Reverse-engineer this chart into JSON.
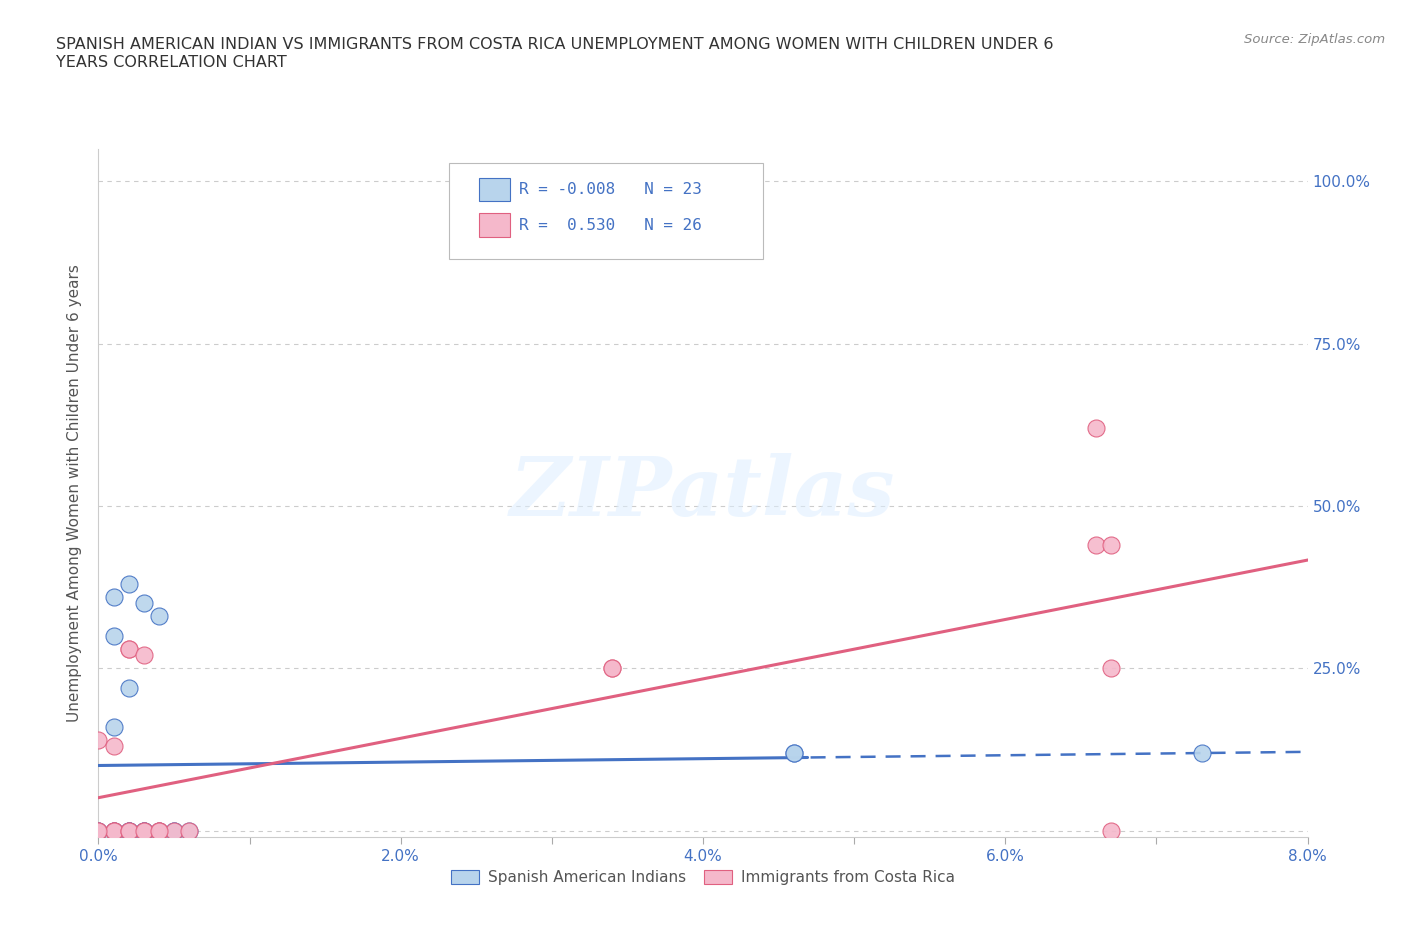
{
  "title": "SPANISH AMERICAN INDIAN VS IMMIGRANTS FROM COSTA RICA UNEMPLOYMENT AMONG WOMEN WITH CHILDREN UNDER 6\nYEARS CORRELATION CHART",
  "source": "Source: ZipAtlas.com",
  "ylabel": "Unemployment Among Women with Children Under 6 years",
  "xlim": [
    0.0,
    0.08
  ],
  "ylim": [
    -0.01,
    1.05
  ],
  "xticks": [
    0.0,
    0.01,
    0.02,
    0.03,
    0.04,
    0.05,
    0.06,
    0.07,
    0.08
  ],
  "xticklabels": [
    "0.0%",
    "",
    "2.0%",
    "",
    "4.0%",
    "",
    "6.0%",
    "",
    "8.0%"
  ],
  "yticks": [
    0.0,
    0.25,
    0.5,
    0.75,
    1.0
  ],
  "yticklabels": [
    "",
    "25.0%",
    "50.0%",
    "75.0%",
    "100.0%"
  ],
  "watermark_text": "ZIPatlas",
  "blue_R": "-0.008",
  "blue_N": "23",
  "pink_R": "0.530",
  "pink_N": "26",
  "blue_fill": "#b8d4ec",
  "blue_edge": "#4472c4",
  "pink_fill": "#f5b8cb",
  "pink_edge": "#e06080",
  "blue_line": "#4472c4",
  "pink_line": "#e06080",
  "tick_color": "#4472c4",
  "grid_color": "#cccccc",
  "bg_color": "#ffffff",
  "blue_scatter_x": [
    0.001,
    0.001,
    0.002,
    0.002,
    0.003,
    0.003,
    0.004,
    0.005,
    0.005,
    0.001,
    0.002,
    0.003,
    0.004,
    0.004,
    0.005,
    0.006,
    0.006,
    0.0,
    0.0,
    0.001,
    0.002,
    0.046,
    0.073
  ],
  "blue_scatter_y": [
    0.36,
    0.3,
    0.37,
    0.0,
    0.35,
    0.0,
    0.0,
    0.0,
    0.0,
    0.16,
    0.0,
    0.0,
    0.33,
    0.0,
    0.0,
    0.0,
    0.0,
    0.0,
    0.0,
    0.0,
    0.0,
    0.12,
    0.12
  ],
  "pink_scatter_x": [
    0.0,
    0.0,
    0.001,
    0.001,
    0.002,
    0.002,
    0.002,
    0.003,
    0.003,
    0.004,
    0.004,
    0.004,
    0.005,
    0.005,
    0.006,
    0.006,
    0.0,
    0.001,
    0.002,
    0.003,
    0.034,
    0.034,
    0.066,
    0.066,
    0.066,
    0.067
  ],
  "pink_scatter_y": [
    0.0,
    0.0,
    0.0,
    0.0,
    0.28,
    0.28,
    0.0,
    0.0,
    0.0,
    0.0,
    0.0,
    0.0,
    0.0,
    0.0,
    0.0,
    0.0,
    0.0,
    0.13,
    0.0,
    0.0,
    0.25,
    0.25,
    0.44,
    0.62,
    0.44,
    0.44
  ]
}
